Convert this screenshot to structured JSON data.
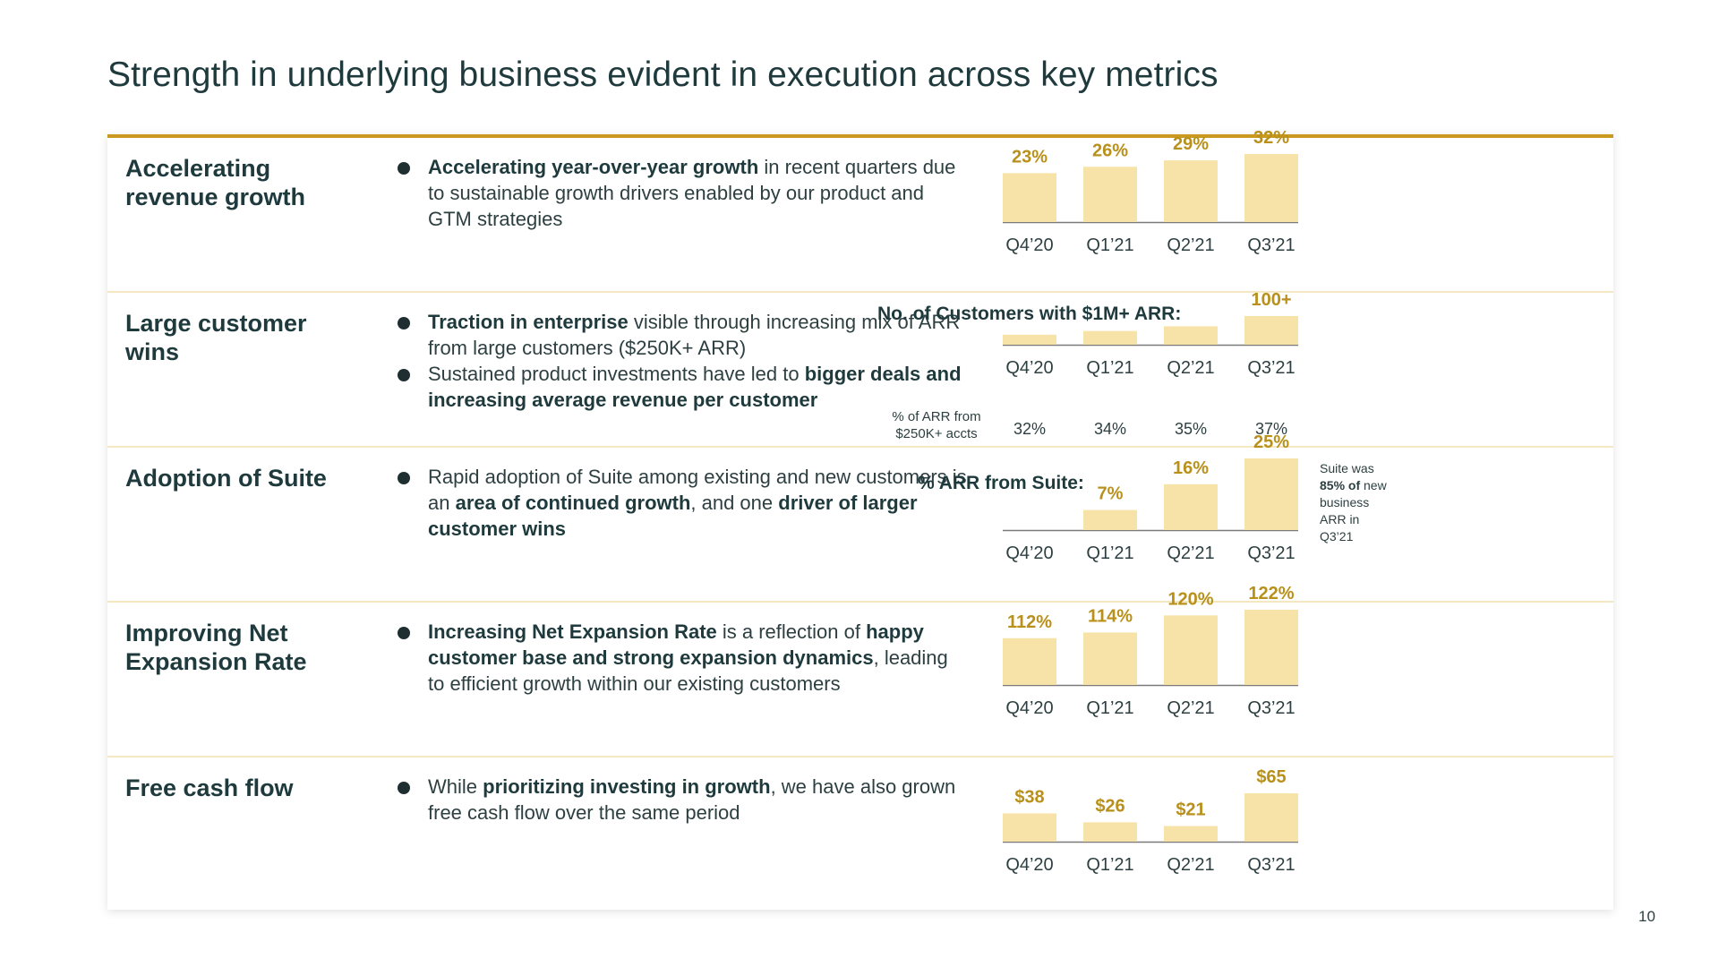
{
  "title": "Strength in underlying business evident in execution across key metrics",
  "page_number": "10",
  "rows": [
    {
      "label_lines": [
        "Accelerating",
        "revenue growth"
      ],
      "bullets": [
        [
          {
            "b": "Accelerating year-over-year growth"
          },
          {
            "t": " in recent quarters due to sustainable growth drivers enabled by our product and GTM strategies"
          }
        ]
      ]
    },
    {
      "label_lines": [
        "Large customer",
        "wins"
      ],
      "bullets": [
        [
          {
            "b": "Traction in enterprise"
          },
          {
            "t": " visible through increasing mix of ARR from large customers ($250K+ ARR)"
          }
        ],
        [
          {
            "t": "Sustained product investments have led to "
          },
          {
            "b": "bigger deals and increasing average revenue per customer"
          }
        ]
      ]
    },
    {
      "label_lines": [
        "Adoption of Suite"
      ],
      "bullets": [
        [
          {
            "t": "Rapid adoption of Suite among existing and new customers is an "
          },
          {
            "b": "area of continued growth"
          },
          {
            "t": ", and one "
          },
          {
            "b": "driver of larger customer wins"
          }
        ]
      ]
    },
    {
      "label_lines": [
        "Improving Net",
        "Expansion Rate"
      ],
      "bullets": [
        [
          {
            "b": "Increasing Net Expansion Rate"
          },
          {
            "t": " is a reflection of "
          },
          {
            "b": "happy customer base and strong expansion dynamics"
          },
          {
            "t": ", leading to efficient growth within our existing customers"
          }
        ]
      ]
    },
    {
      "label_lines": [
        "Free cash flow"
      ],
      "bullets": [
        [
          {
            "t": "While "
          },
          {
            "b": "prioritizing investing in growth"
          },
          {
            "t": ", we have also grown free cash flow over the same period"
          }
        ]
      ]
    }
  ],
  "chart_data": [
    {
      "type": "bar",
      "title": "",
      "categories": [
        "Q4’20",
        "Q1’21",
        "Q2’21",
        "Q3’21"
      ],
      "values": [
        23,
        26,
        29,
        32
      ],
      "labels": [
        "23%",
        "26%",
        "29%",
        "32%"
      ],
      "ylim": [
        0,
        32
      ]
    },
    {
      "type": "bar",
      "title": "No. of Customers with $1M+ ARR:",
      "categories": [
        "Q4’20",
        "Q1’21",
        "Q2’21",
        "Q3’21"
      ],
      "values": [
        20,
        36,
        56,
        100
      ],
      "labels": [
        "",
        "",
        "",
        "100+"
      ],
      "ylim": [
        0,
        100
      ],
      "sub_label": [
        "% of ARR from",
        "$250K+ accts"
      ],
      "sub_values": [
        "32%",
        "34%",
        "35%",
        "37%"
      ]
    },
    {
      "type": "bar",
      "title": "% ARR from Suite:",
      "categories": [
        "Q4’20",
        "Q1’21",
        "Q2’21",
        "Q3’21"
      ],
      "values": [
        0,
        7,
        16,
        25
      ],
      "labels": [
        "",
        "7%",
        "16%",
        "25%"
      ],
      "ylim": [
        0,
        25
      ],
      "note": [
        "Suite was",
        "85% of new",
        "business",
        "ARR in",
        "Q3’21"
      ]
    },
    {
      "type": "bar",
      "title": "",
      "categories": [
        "Q4’20",
        "Q1’21",
        "Q2’21",
        "Q3’21"
      ],
      "values": [
        112,
        114,
        120,
        122
      ],
      "labels": [
        "112%",
        "114%",
        "120%",
        "122%"
      ],
      "ylim": [
        105,
        122
      ]
    },
    {
      "type": "bar",
      "title": "",
      "categories": [
        "Q4’20",
        "Q1’21",
        "Q2’21",
        "Q3’21"
      ],
      "values": [
        38,
        26,
        21,
        65
      ],
      "labels": [
        "$38",
        "$26",
        "$21",
        "$65"
      ],
      "ylim": [
        0,
        65
      ]
    }
  ]
}
